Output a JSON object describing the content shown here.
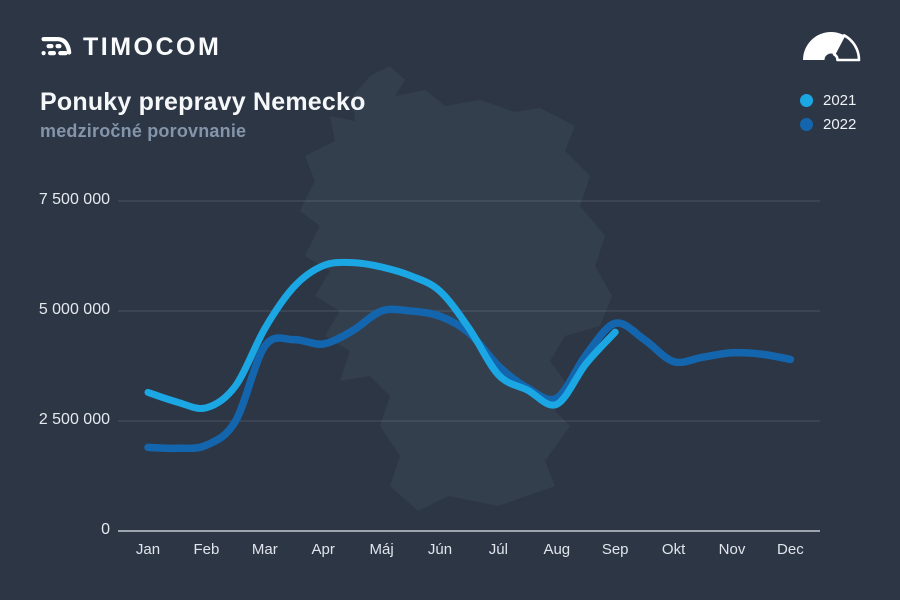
{
  "header": {
    "brand": "TIMOCOM",
    "title": "Ponuky prepravy Nemecko",
    "subtitle": "medziročné porovnanie"
  },
  "icons": {
    "brand_mark": "timocom-truck-lines-logo",
    "gauge": "speedometer-gauge"
  },
  "legend": [
    {
      "label": "2022",
      "color": "#1ba7e4"
    },
    {
      "label": "2021",
      "color": "#1366ae"
    }
  ],
  "chart_data": {
    "type": "line",
    "title": "Ponuky prepravy Nemecko",
    "subtitle": "medziročné porovnanie",
    "categories": [
      "Jan",
      "Feb",
      "Mar",
      "Apr",
      "Máj",
      "Jún",
      "Júl",
      "Aug",
      "Sep",
      "Okt",
      "Nov",
      "Dec"
    ],
    "y_ticks": [
      {
        "label": "7 500 000",
        "value": 7500000
      },
      {
        "label": "5 000 000",
        "value": 5000000
      },
      {
        "label": "2 500 000",
        "value": 2500000
      },
      {
        "label": "0",
        "value": 0
      }
    ],
    "ylim": [
      0,
      8200000
    ],
    "grid": true,
    "legend_position": "top-right",
    "background_motif": "germany-map-silhouette",
    "series": [
      {
        "name": "2021",
        "color": "#1366ae",
        "stroke_width": 7.5,
        "monthly_values": [
          1900000,
          1950000,
          4200000,
          4250000,
          5000000,
          4880000,
          3750000,
          3020000,
          4720000,
          3850000,
          4050000,
          3900000
        ],
        "points": [
          [
            0,
            1.9
          ],
          [
            0.5,
            1.88
          ],
          [
            1,
            1.95
          ],
          [
            1.5,
            2.5
          ],
          [
            2,
            4.2
          ],
          [
            2.5,
            4.35
          ],
          [
            3,
            4.25
          ],
          [
            3.5,
            4.55
          ],
          [
            4,
            5.0
          ],
          [
            4.5,
            5.0
          ],
          [
            5,
            4.88
          ],
          [
            5.5,
            4.5
          ],
          [
            6,
            3.75
          ],
          [
            6.5,
            3.25
          ],
          [
            7,
            3.02
          ],
          [
            7.5,
            4.0
          ],
          [
            8,
            4.72
          ],
          [
            8.5,
            4.35
          ],
          [
            9,
            3.85
          ],
          [
            9.5,
            3.95
          ],
          [
            10,
            4.05
          ],
          [
            10.5,
            4.02
          ],
          [
            11,
            3.9
          ]
        ]
      },
      {
        "name": "2022",
        "color": "#1ba7e4",
        "stroke_width": 7,
        "monthly_values": [
          3150000,
          2800000,
          4600000,
          6030000,
          6000000,
          5450000,
          3550000,
          2880000,
          4520000,
          null,
          null,
          null
        ],
        "points": [
          [
            0,
            3.15
          ],
          [
            0.5,
            2.93
          ],
          [
            1,
            2.8
          ],
          [
            1.5,
            3.3
          ],
          [
            2,
            4.6
          ],
          [
            2.5,
            5.55
          ],
          [
            3,
            6.03
          ],
          [
            3.5,
            6.1
          ],
          [
            4,
            6.0
          ],
          [
            4.5,
            5.8
          ],
          [
            5,
            5.45
          ],
          [
            5.5,
            4.6
          ],
          [
            6,
            3.55
          ],
          [
            6.5,
            3.2
          ],
          [
            7,
            2.88
          ],
          [
            7.5,
            3.8
          ],
          [
            8,
            4.52
          ]
        ]
      }
    ]
  }
}
